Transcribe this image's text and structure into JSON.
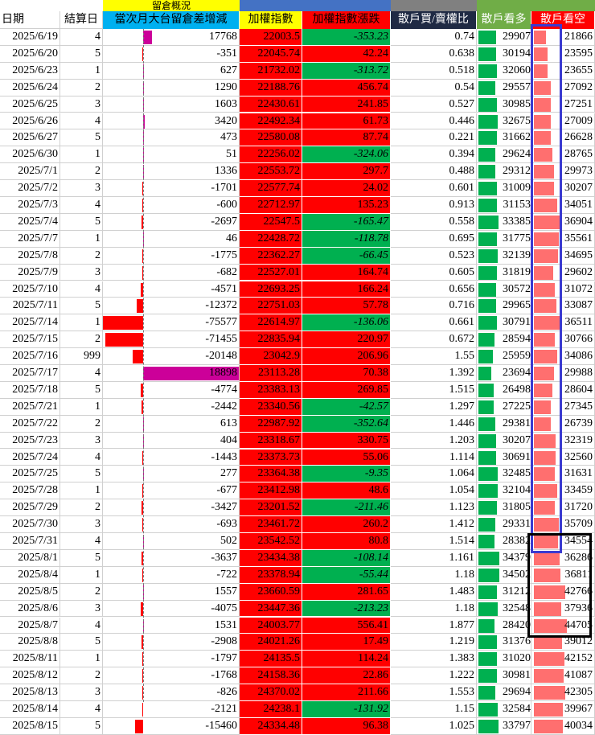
{
  "headers_top": {
    "group_label": "留倉概況"
  },
  "headers": {
    "date": "日期",
    "settle_day": "結算日",
    "oi_change": "當次月大台留倉差增減",
    "index": "加權指數",
    "index_change": "加權指數漲跌",
    "retail_ratio": "散戶買/賣權比",
    "retail_long": "散戶看多",
    "retail_short": "散戶看空"
  },
  "colors": {
    "header_yellow": "#ffff00",
    "header_blue": "#00b0f0",
    "index_bg": "#ff0000",
    "up_bg": "#ff0000",
    "down_bg": "#00b050",
    "gray_header": "#808080",
    "green_header": "#70ad47",
    "magenta_bar": "#cc0099",
    "red_bar": "#ff0000",
    "green_bar": "#00b050",
    "pink_bar": "#ff6f6f",
    "blue_box": "#3a3ad0",
    "black_box": "#000000"
  },
  "rows": [
    {
      "date": "2025/6/19",
      "settle": "4",
      "oi": "17768",
      "oi_frac": 0.094,
      "index": "22003.5",
      "chg": "-353.23",
      "ratio": "0.74",
      "long": "29907",
      "long_frac": 0.72,
      "short": "21866",
      "short_frac": 0.35
    },
    {
      "date": "2025/6/20",
      "settle": "5",
      "oi": "-351",
      "oi_frac": -0.002,
      "index": "22045.74",
      "chg": "42.24",
      "ratio": "0.638",
      "long": "30194",
      "long_frac": 0.73,
      "short": "23595",
      "short_frac": 0.4
    },
    {
      "date": "2025/6/23",
      "settle": "1",
      "oi": "627",
      "oi_frac": 0.003,
      "index": "21732.02",
      "chg": "-313.72",
      "ratio": "0.518",
      "long": "32060",
      "long_frac": 0.78,
      "short": "23655",
      "short_frac": 0.4
    },
    {
      "date": "2025/6/24",
      "settle": "2",
      "oi": "1290",
      "oi_frac": 0.007,
      "index": "22188.76",
      "chg": "456.74",
      "ratio": "0.54",
      "long": "29557",
      "long_frac": 0.71,
      "short": "27092",
      "short_frac": 0.5
    },
    {
      "date": "2025/6/25",
      "settle": "3",
      "oi": "1603",
      "oi_frac": 0.008,
      "index": "22430.61",
      "chg": "241.85",
      "ratio": "0.527",
      "long": "30985",
      "long_frac": 0.75,
      "short": "27251",
      "short_frac": 0.51
    },
    {
      "date": "2025/6/26",
      "settle": "4",
      "oi": "3420",
      "oi_frac": 0.018,
      "index": "22492.34",
      "chg": "61.73",
      "ratio": "0.446",
      "long": "32675",
      "long_frac": 0.8,
      "short": "27009",
      "short_frac": 0.5
    },
    {
      "date": "2025/6/27",
      "settle": "5",
      "oi": "473",
      "oi_frac": 0.002,
      "index": "22580.08",
      "chg": "87.74",
      "ratio": "0.221",
      "long": "31662",
      "long_frac": 0.77,
      "short": "26628",
      "short_frac": 0.49
    },
    {
      "date": "2025/6/30",
      "settle": "1",
      "oi": "51",
      "oi_frac": 0.0003,
      "index": "22256.02",
      "chg": "-324.06",
      "ratio": "0.394",
      "long": "29624",
      "long_frac": 0.71,
      "short": "28765",
      "short_frac": 0.55
    },
    {
      "date": "2025/7/1",
      "settle": "2",
      "oi": "1336",
      "oi_frac": 0.007,
      "index": "22553.72",
      "chg": "297.7",
      "ratio": "0.488",
      "long": "29312",
      "long_frac": 0.7,
      "short": "29973",
      "short_frac": 0.59
    },
    {
      "date": "2025/7/2",
      "settle": "3",
      "oi": "-1701",
      "oi_frac": -0.009,
      "index": "22577.74",
      "chg": "24.02",
      "ratio": "0.601",
      "long": "31009",
      "long_frac": 0.75,
      "short": "30207",
      "short_frac": 0.59
    },
    {
      "date": "2025/7/3",
      "settle": "4",
      "oi": "-600",
      "oi_frac": -0.003,
      "index": "22712.97",
      "chg": "135.23",
      "ratio": "0.913",
      "long": "31153",
      "long_frac": 0.76,
      "short": "34051",
      "short_frac": 0.7
    },
    {
      "date": "2025/7/4",
      "settle": "5",
      "oi": "-2697",
      "oi_frac": -0.014,
      "index": "22547.5",
      "chg": "-165.47",
      "ratio": "0.558",
      "long": "33385",
      "long_frac": 0.83,
      "short": "36904",
      "short_frac": 0.78
    },
    {
      "date": "2025/7/7",
      "settle": "1",
      "oi": "46",
      "oi_frac": 0.0002,
      "index": "22428.72",
      "chg": "-118.78",
      "ratio": "0.695",
      "long": "31775",
      "long_frac": 0.78,
      "short": "35561",
      "short_frac": 0.74
    },
    {
      "date": "2025/7/8",
      "settle": "2",
      "oi": "-1775",
      "oi_frac": -0.009,
      "index": "22362.27",
      "chg": "-66.45",
      "ratio": "0.523",
      "long": "32139",
      "long_frac": 0.79,
      "short": "34695",
      "short_frac": 0.72
    },
    {
      "date": "2025/7/9",
      "settle": "3",
      "oi": "-682",
      "oi_frac": -0.004,
      "index": "22527.01",
      "chg": "164.74",
      "ratio": "0.605",
      "long": "31819",
      "long_frac": 0.78,
      "short": "29602",
      "short_frac": 0.58
    },
    {
      "date": "2025/7/10",
      "settle": "4",
      "oi": "-4571",
      "oi_frac": -0.024,
      "index": "22693.25",
      "chg": "166.24",
      "ratio": "0.656",
      "long": "30572",
      "long_frac": 0.74,
      "short": "31072",
      "short_frac": 0.62
    },
    {
      "date": "2025/7/11",
      "settle": "5",
      "oi": "-12372",
      "oi_frac": -0.065,
      "index": "22751.03",
      "chg": "57.78",
      "ratio": "0.716",
      "long": "29965",
      "long_frac": 0.72,
      "short": "33087",
      "short_frac": 0.67
    },
    {
      "date": "2025/7/14",
      "settle": "1",
      "oi": "-75577",
      "oi_frac": -0.4,
      "index": "22614.97",
      "chg": "-136.06",
      "ratio": "0.661",
      "long": "30791",
      "long_frac": 0.75,
      "short": "36511",
      "short_frac": 0.77
    },
    {
      "date": "2025/7/15",
      "settle": "2",
      "oi": "-71455",
      "oi_frac": -0.38,
      "index": "22835.94",
      "chg": "220.97",
      "ratio": "0.672",
      "long": "28594",
      "long_frac": 0.68,
      "short": "30766",
      "short_frac": 0.61
    },
    {
      "date": "2025/7/16",
      "settle": "999",
      "oi": "-20148",
      "oi_frac": -0.106,
      "index": "23042.9",
      "chg": "206.96",
      "ratio": "1.55",
      "long": "25959",
      "long_frac": 0.6,
      "short": "34086",
      "short_frac": 0.7
    },
    {
      "date": "2025/7/17",
      "settle": "4",
      "oi": "18898",
      "oi_frac": 1.0,
      "index": "23113.28",
      "chg": "70.38",
      "ratio": "1.392",
      "long": "23694",
      "long_frac": 0.54,
      "short": "29988",
      "short_frac": 0.59
    },
    {
      "date": "2025/7/18",
      "settle": "5",
      "oi": "-4774",
      "oi_frac": -0.025,
      "index": "23383.13",
      "chg": "269.85",
      "ratio": "1.515",
      "long": "26498",
      "long_frac": 0.62,
      "short": "28604",
      "short_frac": 0.55
    },
    {
      "date": "2025/7/21",
      "settle": "1",
      "oi": "-2442",
      "oi_frac": -0.013,
      "index": "23340.56",
      "chg": "-42.57",
      "ratio": "1.297",
      "long": "27225",
      "long_frac": 0.64,
      "short": "27345",
      "short_frac": 0.51
    },
    {
      "date": "2025/7/22",
      "settle": "2",
      "oi": "613",
      "oi_frac": 0.003,
      "index": "22987.92",
      "chg": "-352.64",
      "ratio": "1.446",
      "long": "29381",
      "long_frac": 0.7,
      "short": "26739",
      "short_frac": 0.5
    },
    {
      "date": "2025/7/23",
      "settle": "3",
      "oi": "404",
      "oi_frac": 0.002,
      "index": "23318.67",
      "chg": "330.75",
      "ratio": "1.203",
      "long": "30207",
      "long_frac": 0.73,
      "short": "32319",
      "short_frac": 0.64
    },
    {
      "date": "2025/7/24",
      "settle": "4",
      "oi": "-1443",
      "oi_frac": -0.008,
      "index": "23373.73",
      "chg": "55.06",
      "ratio": "1.114",
      "long": "30691",
      "long_frac": 0.74,
      "short": "32560",
      "short_frac": 0.65
    },
    {
      "date": "2025/7/25",
      "settle": "5",
      "oi": "277",
      "oi_frac": 0.0015,
      "index": "23364.38",
      "chg": "-9.35",
      "ratio": "1.064",
      "long": "32485",
      "long_frac": 0.8,
      "short": "31631",
      "short_frac": 0.62
    },
    {
      "date": "2025/7/28",
      "settle": "1",
      "oi": "-677",
      "oi_frac": -0.004,
      "index": "23412.98",
      "chg": "48.6",
      "ratio": "1.054",
      "long": "32104",
      "long_frac": 0.79,
      "short": "33459",
      "short_frac": 0.68
    },
    {
      "date": "2025/7/29",
      "settle": "2",
      "oi": "-3427",
      "oi_frac": -0.018,
      "index": "23201.52",
      "chg": "-211.46",
      "ratio": "1.123",
      "long": "31805",
      "long_frac": 0.78,
      "short": "31720",
      "short_frac": 0.63
    },
    {
      "date": "2025/7/30",
      "settle": "3",
      "oi": "-693",
      "oi_frac": -0.004,
      "index": "23461.72",
      "chg": "260.2",
      "ratio": "1.412",
      "long": "29331",
      "long_frac": 0.7,
      "short": "35709",
      "short_frac": 0.74
    },
    {
      "date": "2025/7/31",
      "settle": "4",
      "oi": "502",
      "oi_frac": 0.003,
      "index": "23542.52",
      "chg": "80.8",
      "ratio": "1.514",
      "long": "28382",
      "long_frac": 0.68,
      "short": "34554",
      "short_frac": 0.71
    },
    {
      "date": "2025/8/1",
      "settle": "5",
      "oi": "-3637",
      "oi_frac": -0.019,
      "index": "23434.38",
      "chg": "-108.14",
      "ratio": "1.161",
      "long": "34379",
      "long_frac": 0.85,
      "short": "36286",
      "short_frac": 0.76
    },
    {
      "date": "2025/8/4",
      "settle": "1",
      "oi": "-722",
      "oi_frac": -0.004,
      "index": "23378.94",
      "chg": "-55.44",
      "ratio": "1.18",
      "long": "34502",
      "long_frac": 0.85,
      "short": "36811",
      "short_frac": 0.78
    },
    {
      "date": "2025/8/5",
      "settle": "2",
      "oi": "1557",
      "oi_frac": 0.008,
      "index": "23660.59",
      "chg": "281.65",
      "ratio": "1.483",
      "long": "31212",
      "long_frac": 0.76,
      "short": "42766",
      "short_frac": 0.93
    },
    {
      "date": "2025/8/6",
      "settle": "3",
      "oi": "-4075",
      "oi_frac": -0.022,
      "index": "23447.36",
      "chg": "-213.23",
      "ratio": "1.18",
      "long": "32548",
      "long_frac": 0.8,
      "short": "37936",
      "short_frac": 0.8
    },
    {
      "date": "2025/8/7",
      "settle": "4",
      "oi": "1531",
      "oi_frac": 0.008,
      "index": "24003.77",
      "chg": "556.41",
      "ratio": "1.877",
      "long": "28420",
      "long_frac": 0.68,
      "short": "44705",
      "short_frac": 0.98
    },
    {
      "date": "2025/8/8",
      "settle": "5",
      "oi": "-2908",
      "oi_frac": -0.015,
      "index": "24021.26",
      "chg": "17.49",
      "ratio": "1.219",
      "long": "31376",
      "long_frac": 0.77,
      "short": "39012",
      "short_frac": 0.83
    },
    {
      "date": "2025/8/11",
      "settle": "1",
      "oi": "-1797",
      "oi_frac": -0.01,
      "index": "24135.5",
      "chg": "114.24",
      "ratio": "1.383",
      "long": "31020",
      "long_frac": 0.76,
      "short": "42152",
      "short_frac": 0.91
    },
    {
      "date": "2025/8/12",
      "settle": "2",
      "oi": "-1768",
      "oi_frac": -0.009,
      "index": "24158.36",
      "chg": "22.86",
      "ratio": "1.222",
      "long": "30981",
      "long_frac": 0.75,
      "short": "41087",
      "short_frac": 0.88
    },
    {
      "date": "2025/8/13",
      "settle": "3",
      "oi": "-826",
      "oi_frac": -0.004,
      "index": "24370.02",
      "chg": "211.66",
      "ratio": "1.553",
      "long": "29694",
      "long_frac": 0.71,
      "short": "42305",
      "short_frac": 0.92
    },
    {
      "date": "2025/8/14",
      "settle": "4",
      "oi": "-2121",
      "oi_frac": -0.011,
      "index": "24238.1",
      "chg": "-131.92",
      "ratio": "1.15",
      "long": "32584",
      "long_frac": 0.8,
      "short": "39967",
      "short_frac": 0.85
    },
    {
      "date": "2025/8/15",
      "settle": "5",
      "oi": "-15460",
      "oi_frac": -0.082,
      "index": "24334.48",
      "chg": "96.38",
      "ratio": "1.025",
      "long": "33797",
      "long_frac": 0.84,
      "short": "40034",
      "short_frac": 0.85
    }
  ]
}
